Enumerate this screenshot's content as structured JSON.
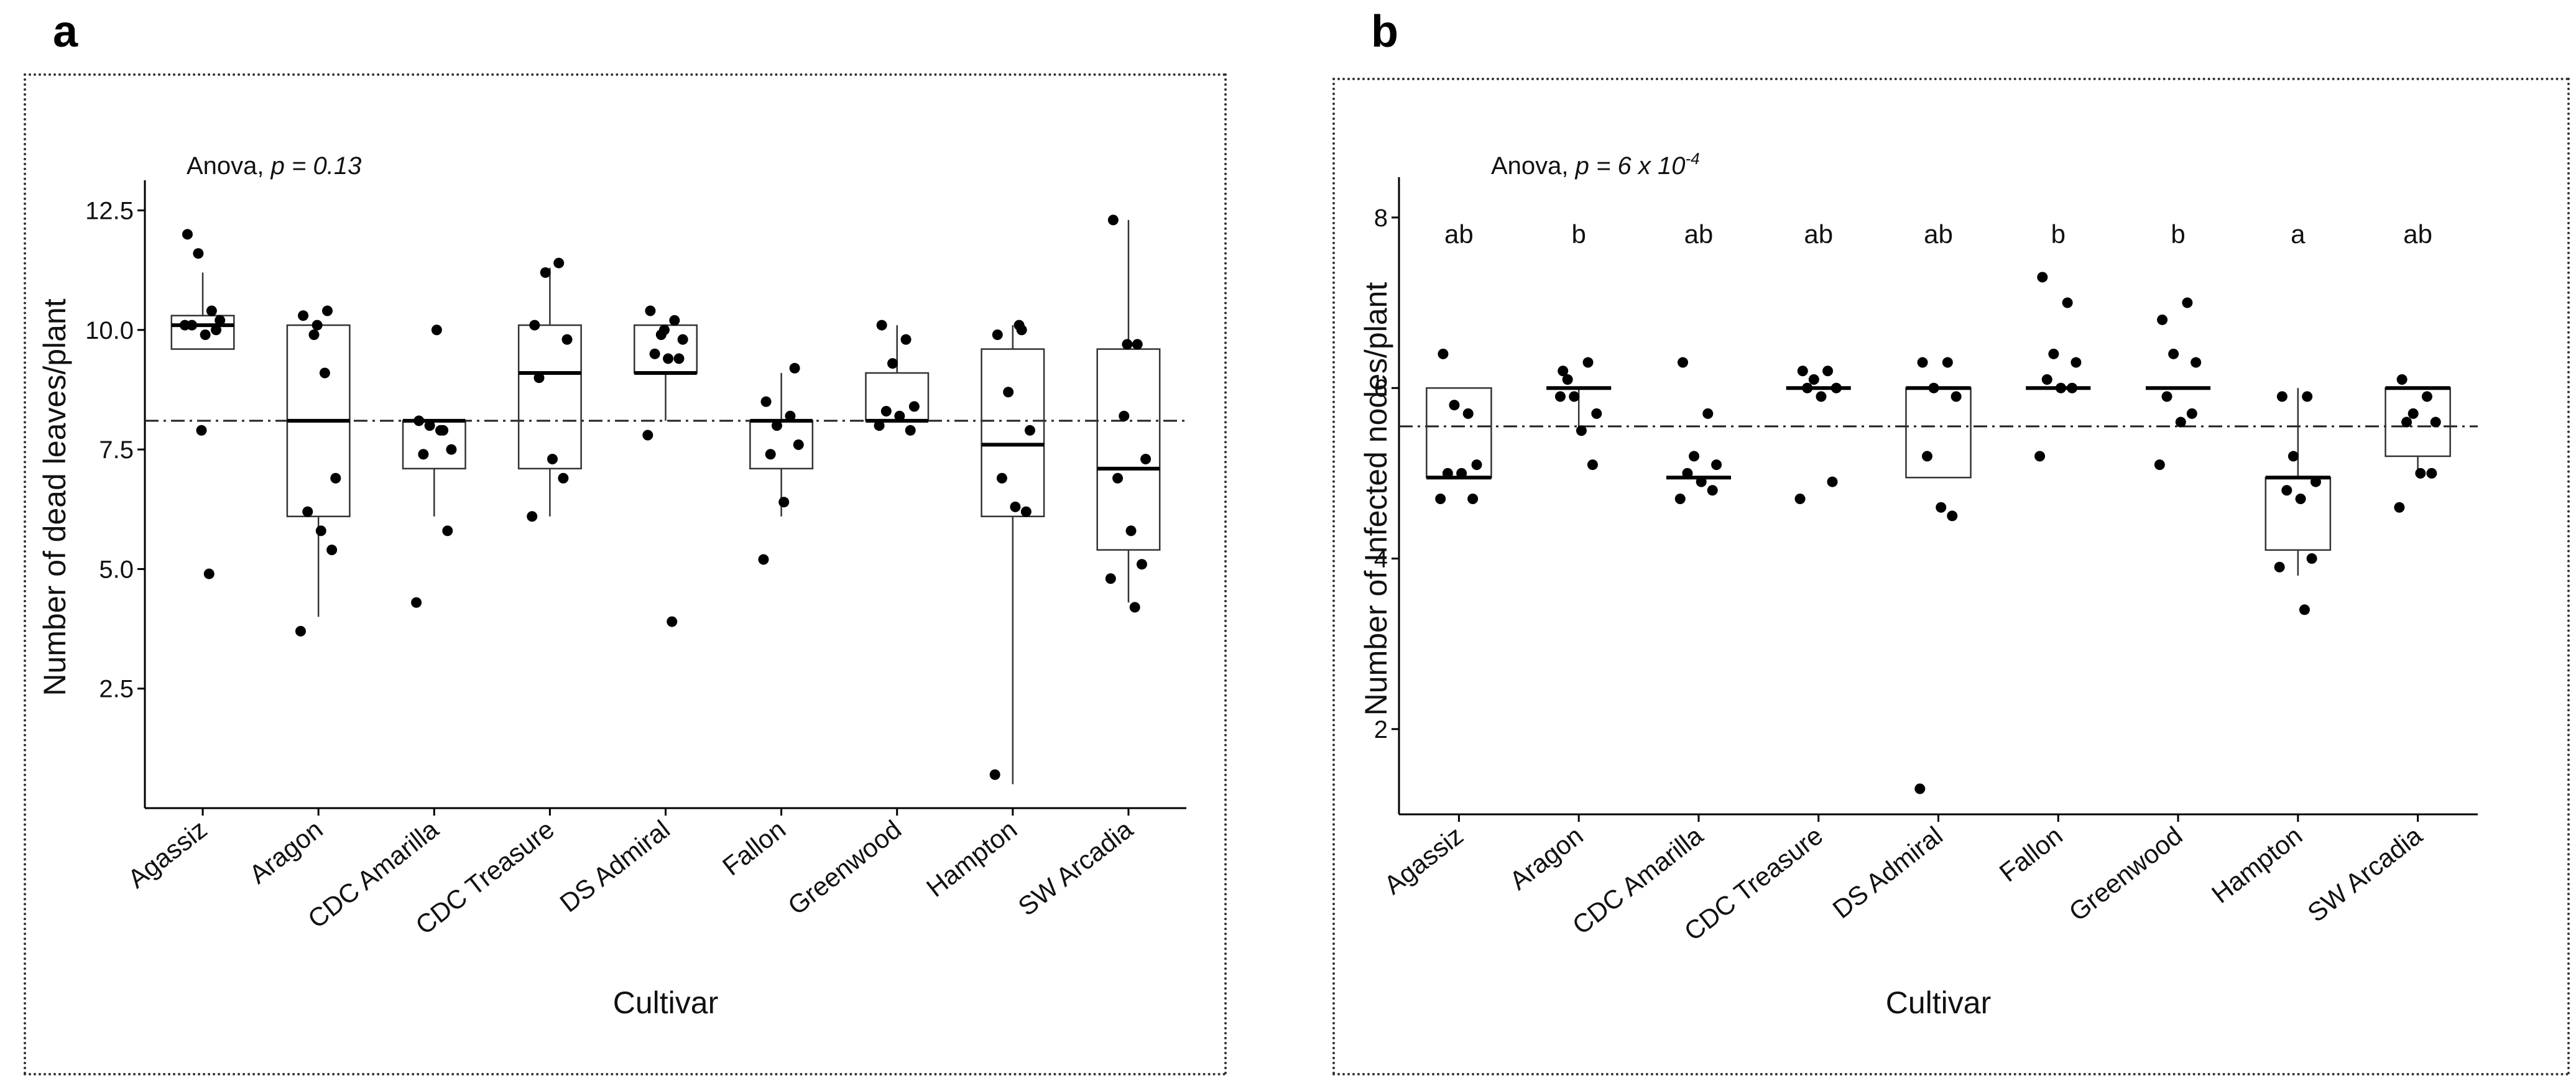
{
  "panels": {
    "a": {
      "letter": "a"
    },
    "b": {
      "letter": "b"
    }
  },
  "chart_data": [
    {
      "id": "a",
      "type": "box",
      "annotation": {
        "prefix": "Anova, ",
        "p_label": "p",
        "p_value": " = 0.13"
      },
      "xlabel": "Cultivar",
      "ylabel": "Number of dead leaves/plant",
      "ylim": [
        0,
        13
      ],
      "yticks": [
        "2.5",
        "5.0",
        "7.5",
        "10.0",
        "12.5"
      ],
      "ytick_values": [
        2.5,
        5.0,
        7.5,
        10.0,
        12.5
      ],
      "reference_line": 8.1,
      "reference_style": "dash-dot",
      "categories": [
        "Agassiz",
        "Aragon",
        "CDC Amarilla",
        "CDC Treasure",
        "DS Admiral",
        "Fallon",
        "Greenwood",
        "Hampton",
        "SW Arcadia"
      ],
      "boxes": [
        {
          "q1": 9.6,
          "median": 10.1,
          "q3": 10.3,
          "low": 9.6,
          "high": 11.2
        },
        {
          "q1": 6.1,
          "median": 8.1,
          "q3": 10.1,
          "low": 4.0,
          "high": 10.1
        },
        {
          "q1": 7.1,
          "median": 8.1,
          "q3": 8.1,
          "low": 6.1,
          "high": 8.1
        },
        {
          "q1": 7.1,
          "median": 9.1,
          "q3": 10.1,
          "low": 6.1,
          "high": 11.3
        },
        {
          "q1": 9.1,
          "median": 9.1,
          "q3": 10.1,
          "low": 8.1,
          "high": 10.1
        },
        {
          "q1": 7.1,
          "median": 8.1,
          "q3": 8.1,
          "low": 6.1,
          "high": 9.1
        },
        {
          "q1": 8.1,
          "median": 8.1,
          "q3": 9.1,
          "low": 8.1,
          "high": 10.1
        },
        {
          "q1": 6.1,
          "median": 7.6,
          "q3": 9.6,
          "low": 0.5,
          "high": 10.1
        },
        {
          "q1": 5.4,
          "median": 7.1,
          "q3": 9.6,
          "low": 4.3,
          "high": 12.3
        }
      ],
      "points": [
        [
          12.0,
          10.4,
          11.6,
          10.2,
          10.1,
          9.9,
          10.0,
          10.1,
          4.9,
          7.9
        ],
        [
          10.3,
          10.4,
          9.9,
          6.9,
          6.2,
          5.8,
          5.4,
          3.7,
          9.1,
          10.1
        ],
        [
          8.1,
          7.9,
          8.0,
          7.5,
          7.4,
          10.0,
          5.8,
          4.3,
          7.9
        ],
        [
          10.1,
          11.4,
          11.2,
          9.8,
          9.0,
          7.3,
          6.9,
          6.1
        ],
        [
          10.4,
          10.2,
          9.9,
          9.8,
          9.5,
          9.4,
          9.4,
          7.8,
          3.9,
          10.0
        ],
        [
          8.5,
          8.2,
          8.0,
          7.6,
          7.4,
          6.4,
          9.2,
          5.2
        ],
        [
          10.1,
          9.8,
          9.3,
          8.4,
          8.3,
          8.2,
          7.9,
          8.0
        ],
        [
          9.9,
          10.0,
          8.7,
          7.9,
          6.9,
          6.3,
          6.2,
          0.7,
          10.1
        ],
        [
          12.3,
          9.7,
          8.2,
          7.3,
          6.9,
          5.8,
          5.1,
          4.8,
          4.2,
          9.7
        ]
      ]
    },
    {
      "id": "b",
      "type": "box",
      "annotation": {
        "prefix": "Anova, ",
        "p_label": "p",
        "p_value": " = 6 x 10",
        "p_exponent": "-4"
      },
      "xlabel": "Cultivar",
      "ylabel": "Number of Infected nodes/plant",
      "ylim": [
        1,
        8.4
      ],
      "yticks": [
        "2",
        "4",
        "6",
        "8"
      ],
      "ytick_values": [
        2,
        4,
        6,
        8
      ],
      "reference_line": 5.55,
      "reference_style": "dash-dot",
      "categories": [
        "Agassiz",
        "Aragon",
        "CDC Amarilla",
        "CDC Treasure",
        "DS Admiral",
        "Fallon",
        "Greenwood",
        "Hampton",
        "SW Arcadia"
      ],
      "letters": [
        "ab",
        "b",
        "ab",
        "ab",
        "ab",
        "b",
        "b",
        "a",
        "ab"
      ],
      "boxes": [
        {
          "q1": 4.95,
          "median": 4.95,
          "q3": 6.0,
          "low": 4.95,
          "high": 6.0
        },
        {
          "q1": 6.0,
          "median": 6.0,
          "q3": 6.0,
          "low": 5.5,
          "high": 6.0
        },
        {
          "q1": 4.95,
          "median": 4.95,
          "q3": 4.95,
          "low": 4.95,
          "high": 4.95
        },
        {
          "q1": 6.0,
          "median": 6.0,
          "q3": 6.0,
          "low": 6.0,
          "high": 6.0
        },
        {
          "q1": 4.95,
          "median": 6.0,
          "q3": 6.0,
          "low": 4.95,
          "high": 6.0
        },
        {
          "q1": 6.0,
          "median": 6.0,
          "q3": 6.0,
          "low": 6.0,
          "high": 6.0
        },
        {
          "q1": 6.0,
          "median": 6.0,
          "q3": 6.0,
          "low": 6.0,
          "high": 6.0
        },
        {
          "q1": 4.1,
          "median": 4.95,
          "q3": 4.95,
          "low": 3.8,
          "high": 6.0
        },
        {
          "q1": 5.2,
          "median": 6.0,
          "q3": 6.0,
          "low": 5.0,
          "high": 6.0
        }
      ],
      "points": [
        [
          6.4,
          5.7,
          5.8,
          5.1,
          5.0,
          5.0,
          4.7,
          4.7
        ],
        [
          6.2,
          6.3,
          5.9,
          5.7,
          6.1,
          5.5,
          5.1,
          5.9
        ],
        [
          6.3,
          5.7,
          5.2,
          5.1,
          5.0,
          4.9,
          4.8,
          4.7
        ],
        [
          6.2,
          6.2,
          6.1,
          6.0,
          6.0,
          5.9,
          4.9,
          4.7
        ],
        [
          6.3,
          6.3,
          6.0,
          5.9,
          5.2,
          4.6,
          4.5,
          1.3
        ],
        [
          7.3,
          7.0,
          6.4,
          6.3,
          6.1,
          6.0,
          6.0,
          5.2
        ],
        [
          6.8,
          7.0,
          6.4,
          6.3,
          5.9,
          5.6,
          5.7,
          5.1
        ],
        [
          5.9,
          5.9,
          5.2,
          4.9,
          4.8,
          4.7,
          4.0,
          3.9,
          3.4
        ],
        [
          6.1,
          5.9,
          5.7,
          5.6,
          5.6,
          5.0,
          5.0,
          4.6
        ]
      ]
    }
  ]
}
